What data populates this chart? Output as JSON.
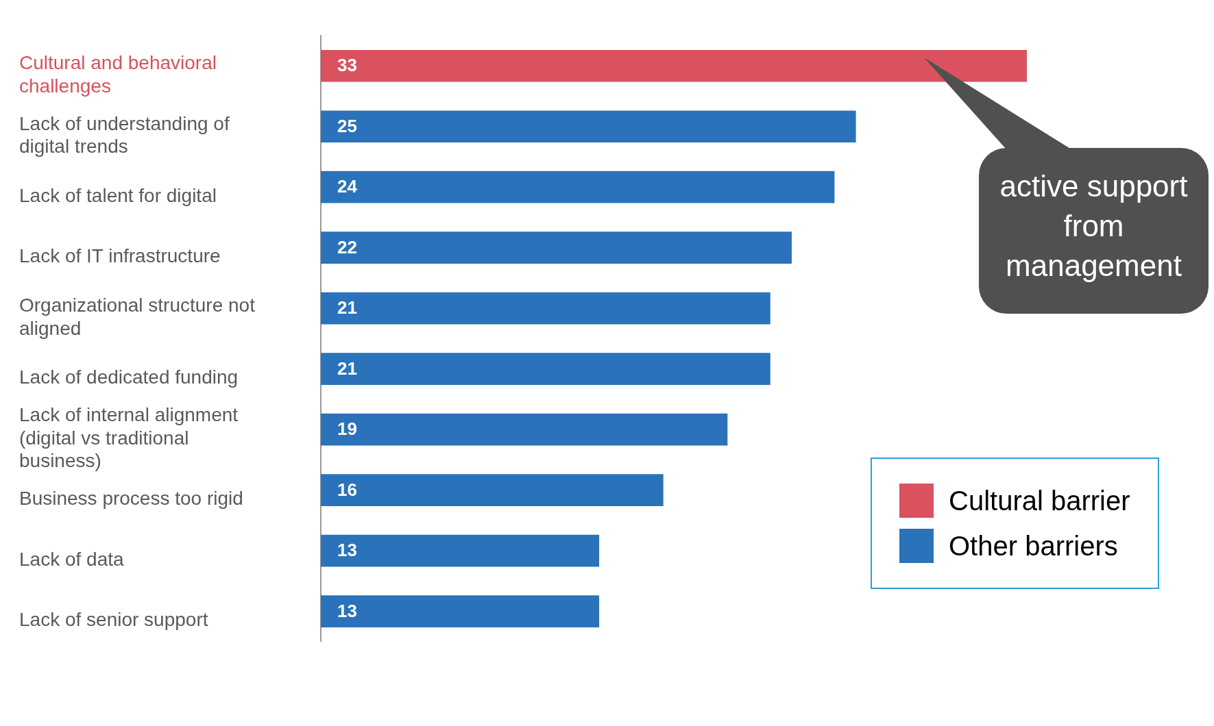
{
  "chart_data": {
    "type": "bar",
    "orientation": "horizontal",
    "categories": [
      "Cultural and behavioral challenges",
      "Lack of understanding of digital trends",
      "Lack of talent for digital",
      "Lack of IT infrastructure",
      "Organizational structure not aligned",
      "Lack of dedicated funding",
      "Lack of internal alignment (digital vs traditional business)",
      "Business process too rigid",
      "Lack of data",
      "Lack of senior support"
    ],
    "series": [
      {
        "name": "Cultural barrier",
        "color": "#d9525e",
        "values": [
          33,
          null,
          null,
          null,
          null,
          null,
          null,
          null,
          null,
          null
        ]
      },
      {
        "name": "Other barriers",
        "color": "#2a73ba",
        "values": [
          null,
          25,
          24,
          22,
          21,
          21,
          19,
          16,
          13,
          13
        ]
      }
    ],
    "data_labels": true,
    "legend": "bottom right",
    "annotations": [
      "active support from management"
    ]
  }
}
